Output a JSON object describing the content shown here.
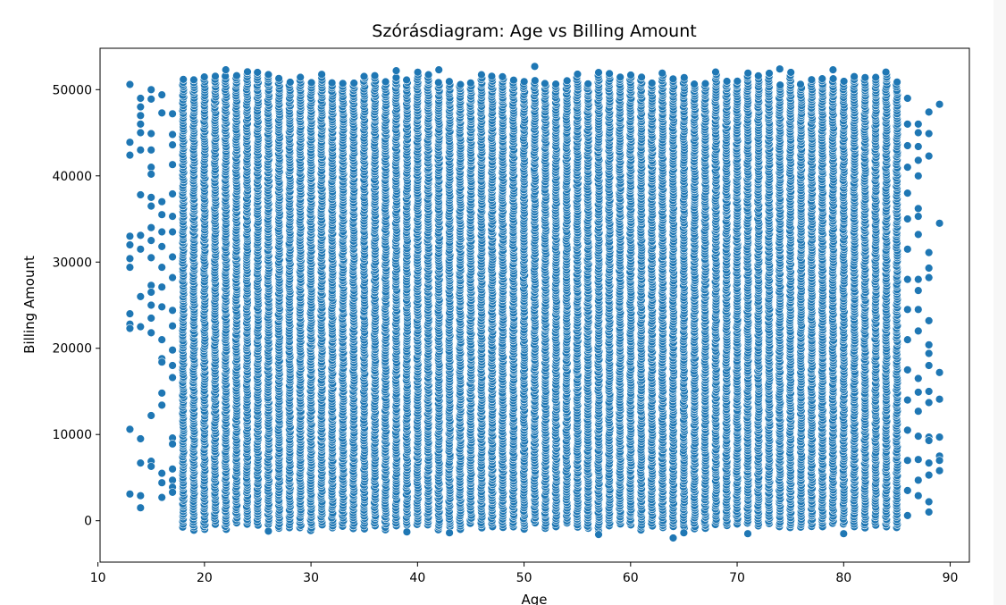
{
  "chart_data": {
    "type": "scatter",
    "title": "Szórásdiagram: Age vs Billing Amount",
    "xlabel": "Age",
    "ylabel": "Billing Amount",
    "xlim": [
      10.2,
      91.8
    ],
    "ylim": [
      -4800,
      54800
    ],
    "xticks": [
      10,
      20,
      30,
      40,
      50,
      60,
      70,
      80,
      90
    ],
    "yticks": [
      0,
      10000,
      20000,
      30000,
      40000,
      50000
    ],
    "grid": false,
    "marker_color": "#1f77b4",
    "marker_edge_color": "#ffffff",
    "dense_age_range": [
      18,
      85
    ],
    "dense_billing_range": [
      -2000,
      52700
    ],
    "points": [
      {
        "x": 13,
        "y": 50600
      },
      {
        "x": 13,
        "y": 43900
      },
      {
        "x": 13,
        "y": 42400
      },
      {
        "x": 13,
        "y": 33000
      },
      {
        "x": 13,
        "y": 32000
      },
      {
        "x": 13,
        "y": 30400
      },
      {
        "x": 13,
        "y": 29400
      },
      {
        "x": 13,
        "y": 24000
      },
      {
        "x": 13,
        "y": 22800
      },
      {
        "x": 13,
        "y": 22300
      },
      {
        "x": 13,
        "y": 10600
      },
      {
        "x": 13,
        "y": 3100
      },
      {
        "x": 14,
        "y": 49000
      },
      {
        "x": 14,
        "y": 48000
      },
      {
        "x": 14,
        "y": 47000
      },
      {
        "x": 14,
        "y": 46000
      },
      {
        "x": 14,
        "y": 45000
      },
      {
        "x": 14,
        "y": 43000
      },
      {
        "x": 14,
        "y": 37800
      },
      {
        "x": 14,
        "y": 33100
      },
      {
        "x": 14,
        "y": 31500
      },
      {
        "x": 14,
        "y": 26000
      },
      {
        "x": 14,
        "y": 22500
      },
      {
        "x": 14,
        "y": 9500
      },
      {
        "x": 14,
        "y": 6700
      },
      {
        "x": 14,
        "y": 2900
      },
      {
        "x": 14,
        "y": 1500
      },
      {
        "x": 15,
        "y": 50000
      },
      {
        "x": 15,
        "y": 48900
      },
      {
        "x": 15,
        "y": 44900
      },
      {
        "x": 15,
        "y": 43000
      },
      {
        "x": 15,
        "y": 41000
      },
      {
        "x": 15,
        "y": 40200
      },
      {
        "x": 15,
        "y": 37500
      },
      {
        "x": 15,
        "y": 36500
      },
      {
        "x": 15,
        "y": 34000
      },
      {
        "x": 15,
        "y": 32500
      },
      {
        "x": 15,
        "y": 30500
      },
      {
        "x": 15,
        "y": 27300
      },
      {
        "x": 15,
        "y": 26500
      },
      {
        "x": 15,
        "y": 25000
      },
      {
        "x": 15,
        "y": 23500
      },
      {
        "x": 15,
        "y": 21800
      },
      {
        "x": 15,
        "y": 12200
      },
      {
        "x": 15,
        "y": 6900
      },
      {
        "x": 15,
        "y": 6300
      },
      {
        "x": 16,
        "y": 49400
      },
      {
        "x": 16,
        "y": 47300
      },
      {
        "x": 16,
        "y": 37000
      },
      {
        "x": 16,
        "y": 35500
      },
      {
        "x": 16,
        "y": 33500
      },
      {
        "x": 16,
        "y": 31800
      },
      {
        "x": 16,
        "y": 29400
      },
      {
        "x": 16,
        "y": 27100
      },
      {
        "x": 16,
        "y": 24800
      },
      {
        "x": 16,
        "y": 21000
      },
      {
        "x": 16,
        "y": 18800
      },
      {
        "x": 16,
        "y": 18400
      },
      {
        "x": 16,
        "y": 14800
      },
      {
        "x": 16,
        "y": 13400
      },
      {
        "x": 16,
        "y": 5500
      },
      {
        "x": 16,
        "y": 4400
      },
      {
        "x": 16,
        "y": 2700
      },
      {
        "x": 17,
        "y": 47200
      },
      {
        "x": 17,
        "y": 44800
      },
      {
        "x": 17,
        "y": 43600
      },
      {
        "x": 17,
        "y": 41300
      },
      {
        "x": 17,
        "y": 37900
      },
      {
        "x": 17,
        "y": 35300
      },
      {
        "x": 17,
        "y": 33500
      },
      {
        "x": 17,
        "y": 30600
      },
      {
        "x": 17,
        "y": 28200
      },
      {
        "x": 17,
        "y": 24400
      },
      {
        "x": 17,
        "y": 22600
      },
      {
        "x": 17,
        "y": 19800
      },
      {
        "x": 17,
        "y": 18000
      },
      {
        "x": 17,
        "y": 16600
      },
      {
        "x": 17,
        "y": 9600
      },
      {
        "x": 17,
        "y": 8900
      },
      {
        "x": 17,
        "y": 6000
      },
      {
        "x": 17,
        "y": 4700
      },
      {
        "x": 17,
        "y": 3900
      },
      {
        "x": 17,
        "y": 3300
      },
      {
        "x": 86,
        "y": 49000
      },
      {
        "x": 86,
        "y": 46000
      },
      {
        "x": 86,
        "y": 43500
      },
      {
        "x": 86,
        "y": 41000
      },
      {
        "x": 86,
        "y": 38000
      },
      {
        "x": 86,
        "y": 35000
      },
      {
        "x": 86,
        "y": 31500
      },
      {
        "x": 86,
        "y": 28000
      },
      {
        "x": 86,
        "y": 24500
      },
      {
        "x": 86,
        "y": 21000
      },
      {
        "x": 86,
        "y": 17500
      },
      {
        "x": 86,
        "y": 14000
      },
      {
        "x": 86,
        "y": 10500
      },
      {
        "x": 86,
        "y": 7000
      },
      {
        "x": 86,
        "y": 3500
      },
      {
        "x": 86,
        "y": 600
      },
      {
        "x": 87,
        "y": 46000
      },
      {
        "x": 87,
        "y": 45000
      },
      {
        "x": 87,
        "y": 43400
      },
      {
        "x": 87,
        "y": 41800
      },
      {
        "x": 87,
        "y": 40000
      },
      {
        "x": 87,
        "y": 36200
      },
      {
        "x": 87,
        "y": 35300
      },
      {
        "x": 87,
        "y": 33200
      },
      {
        "x": 87,
        "y": 28000
      },
      {
        "x": 87,
        "y": 26700
      },
      {
        "x": 87,
        "y": 24500
      },
      {
        "x": 87,
        "y": 22000
      },
      {
        "x": 87,
        "y": 16500
      },
      {
        "x": 87,
        "y": 14900
      },
      {
        "x": 87,
        "y": 12700
      },
      {
        "x": 87,
        "y": 9800
      },
      {
        "x": 87,
        "y": 7100
      },
      {
        "x": 87,
        "y": 4700
      },
      {
        "x": 87,
        "y": 2900
      },
      {
        "x": 88,
        "y": 47400
      },
      {
        "x": 88,
        "y": 44900
      },
      {
        "x": 88,
        "y": 42300
      },
      {
        "x": 88,
        "y": 31100
      },
      {
        "x": 88,
        "y": 29300
      },
      {
        "x": 88,
        "y": 28200
      },
      {
        "x": 88,
        "y": 23200
      },
      {
        "x": 88,
        "y": 20400
      },
      {
        "x": 88,
        "y": 19400
      },
      {
        "x": 88,
        "y": 18000
      },
      {
        "x": 88,
        "y": 15000
      },
      {
        "x": 88,
        "y": 13700
      },
      {
        "x": 88,
        "y": 9700
      },
      {
        "x": 88,
        "y": 9300
      },
      {
        "x": 88,
        "y": 6700
      },
      {
        "x": 88,
        "y": 5300
      },
      {
        "x": 88,
        "y": 2200
      },
      {
        "x": 88,
        "y": 1000
      },
      {
        "x": 89,
        "y": 48300
      },
      {
        "x": 89,
        "y": 34500
      },
      {
        "x": 89,
        "y": 17200
      },
      {
        "x": 89,
        "y": 14100
      },
      {
        "x": 89,
        "y": 9700
      },
      {
        "x": 89,
        "y": 7500
      },
      {
        "x": 89,
        "y": 7000
      },
      {
        "x": 89,
        "y": 5800
      },
      {
        "x": 22,
        "y": 52300
      },
      {
        "x": 38,
        "y": 52200
      },
      {
        "x": 42,
        "y": 52300
      },
      {
        "x": 51,
        "y": 52700
      },
      {
        "x": 74,
        "y": 52400
      },
      {
        "x": 79,
        "y": 52300
      },
      {
        "x": 26,
        "y": -1200
      },
      {
        "x": 39,
        "y": -1300
      },
      {
        "x": 43,
        "y": -1400
      },
      {
        "x": 57,
        "y": -1600
      },
      {
        "x": 64,
        "y": -2000
      },
      {
        "x": 71,
        "y": -1500
      },
      {
        "x": 80,
        "y": -1500
      },
      {
        "x": 65,
        "y": -1400
      }
    ]
  }
}
